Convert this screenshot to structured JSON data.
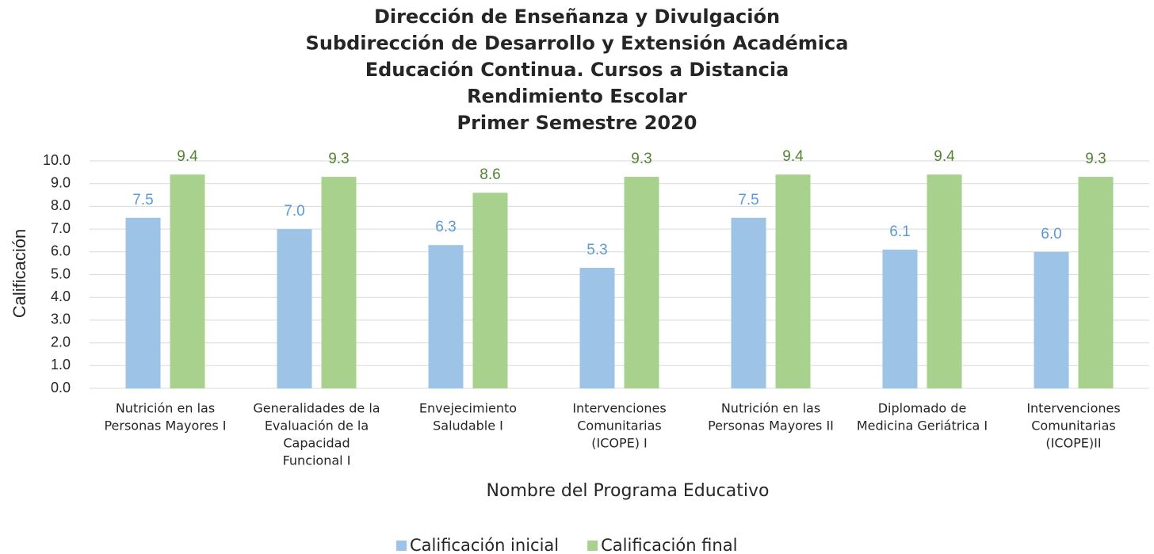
{
  "chart_data": {
    "type": "bar",
    "title": [
      "Dirección de Enseñanza y Divulgación",
      "Subdirección de Desarrollo y Extensión Académica",
      "Educación Continua. Cursos a Distancia",
      "Rendimiento Escolar",
      "Primer Semestre 2020"
    ],
    "x_label": "Nombre del Programa Educativo",
    "y_label": "Calificación",
    "categories": [
      [
        "Nutrición en las",
        "Personas Mayores  I"
      ],
      [
        "Generalidades de la",
        "Evaluación de la",
        "Capacidad",
        "Funcional I"
      ],
      [
        "Envejecimiento",
        "Saludable I"
      ],
      [
        "Intervenciones",
        "Comunitarias",
        "(ICOPE) I"
      ],
      [
        "Nutrición en las",
        "Personas Mayores  II"
      ],
      [
        "Diplomado de",
        "Medicina Geriátrica I"
      ],
      [
        "Intervenciones",
        "Comunitarias",
        "(ICOPE)II"
      ]
    ],
    "series": [
      {
        "name": "Calificación inicial",
        "color": "#9dc3e6",
        "label_color": "#5b9bd5",
        "values": [
          7.5,
          7.0,
          6.3,
          5.3,
          7.5,
          6.1,
          6.0
        ],
        "value_labels": [
          "7.5",
          "7.0",
          "6.3",
          "5.3",
          "7.5",
          "6.1",
          "6.0"
        ]
      },
      {
        "name": "Calificación final",
        "color": "#a9d18e",
        "label_color": "#548235",
        "values": [
          9.4,
          9.3,
          8.6,
          9.3,
          9.4,
          9.4,
          9.3
        ],
        "value_labels": [
          "9.4",
          "9.3",
          "8.6",
          "9.3",
          "9.4",
          "9.4",
          "9.3"
        ]
      }
    ],
    "ylim": [
      0,
      10
    ],
    "yticks": [
      {
        "value": 0,
        "label": "0.0"
      },
      {
        "value": 1,
        "label": "1.0"
      },
      {
        "value": 2,
        "label": "2.0"
      },
      {
        "value": 3,
        "label": "3.0"
      },
      {
        "value": 4,
        "label": "4.0"
      },
      {
        "value": 5,
        "label": "5.0"
      },
      {
        "value": 6,
        "label": "6.0"
      },
      {
        "value": 7,
        "label": "7.0"
      },
      {
        "value": 8,
        "label": "8.0"
      },
      {
        "value": 9,
        "label": "9.0"
      },
      {
        "value": 10,
        "label": "10.0"
      }
    ],
    "grid": true,
    "legend": "bottom"
  }
}
